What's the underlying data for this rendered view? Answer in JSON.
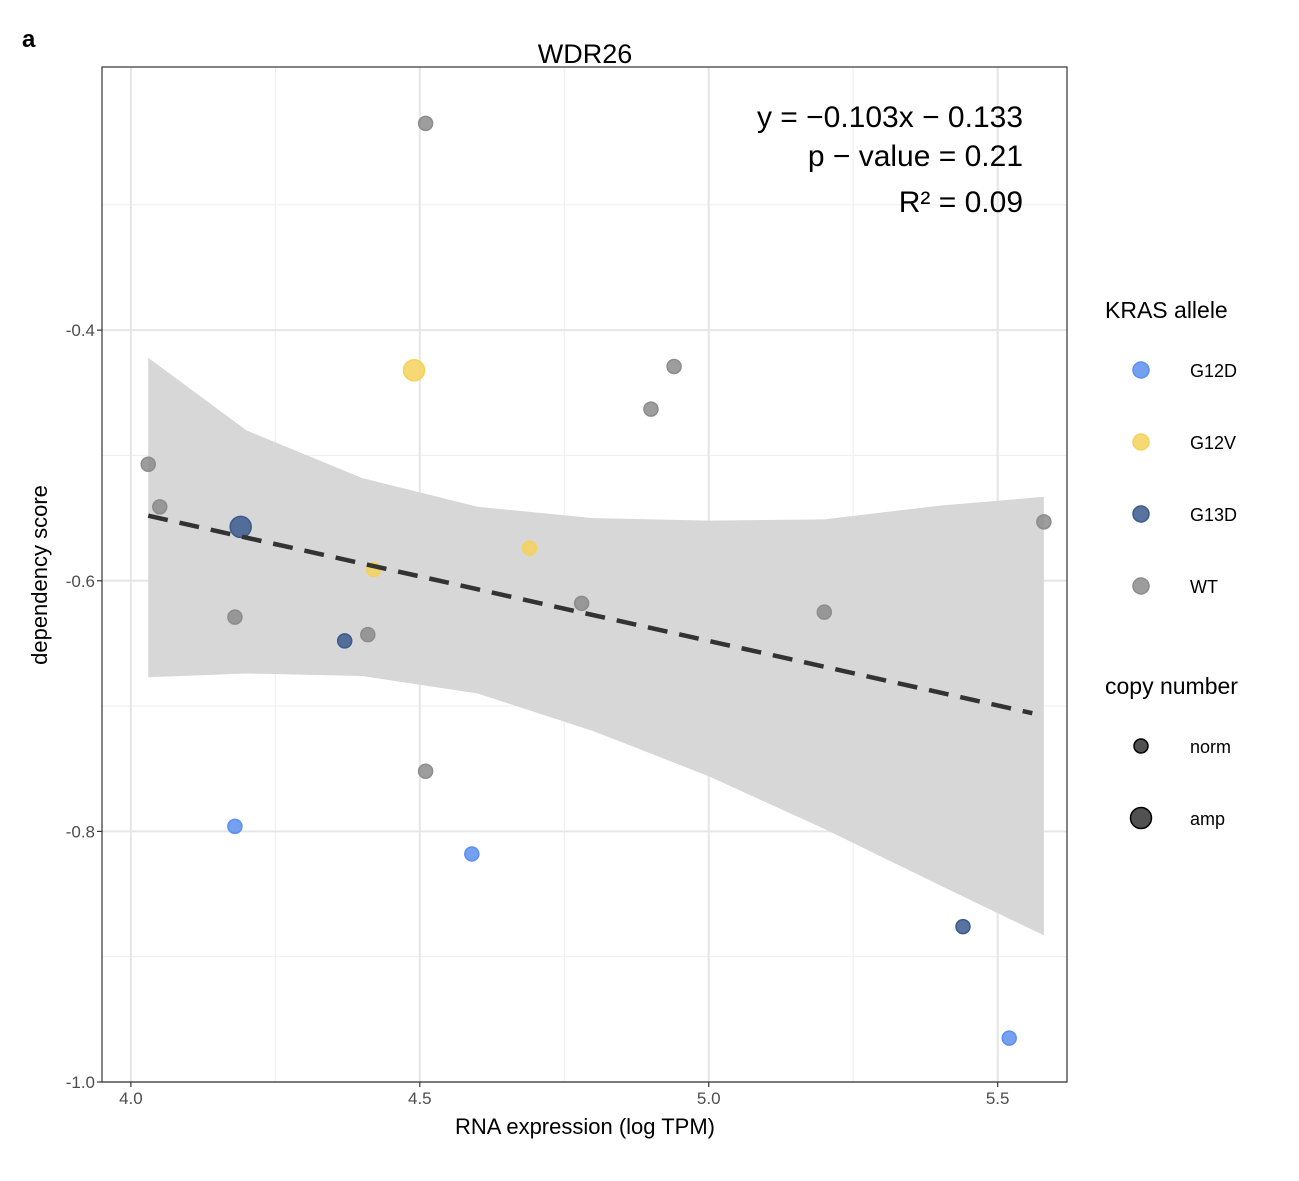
{
  "panel_label": "a",
  "annotation": {
    "equation": "y = −0.103x − 0.133",
    "pvalue": "p − value = 0.21",
    "r2": "R² = 0.09"
  },
  "chart_data": {
    "type": "scatter",
    "title": "WDR26",
    "xlabel": "RNA expression (log TPM)",
    "ylabel": "dependency score",
    "xlim": [
      3.95,
      5.62
    ],
    "ylim": [
      -1.0,
      -0.19
    ],
    "x_ticks": [
      4.0,
      4.5,
      5.0,
      5.5
    ],
    "x_tick_labels": [
      "4.0",
      "4.5",
      "5.0",
      "5.5"
    ],
    "y_ticks": [
      -1.0,
      -0.8,
      -0.6,
      -0.4
    ],
    "y_tick_labels": [
      "-1.0",
      "-0.8",
      "-0.6",
      "-0.4"
    ],
    "grid": true,
    "legend_position": "right",
    "fit": {
      "slope": -0.103,
      "intercept": -0.133,
      "x_range": [
        4.03,
        5.56
      ],
      "style": "dashed"
    },
    "confidence_band": {
      "x": [
        4.03,
        4.2,
        4.4,
        4.6,
        4.8,
        5.0,
        5.2,
        5.4,
        5.58
      ],
      "upper": [
        -0.422,
        -0.48,
        -0.518,
        -0.541,
        -0.55,
        -0.552,
        -0.551,
        -0.54,
        -0.533
      ],
      "lower": [
        -0.677,
        -0.674,
        -0.676,
        -0.69,
        -0.72,
        -0.756,
        -0.798,
        -0.843,
        -0.883
      ]
    },
    "legend": {
      "color_title": "KRAS allele",
      "color_entries": [
        "G12D",
        "G12V",
        "G13D",
        "WT"
      ],
      "size_title": "copy number",
      "size_entries": [
        "norm",
        "amp"
      ]
    },
    "colors": {
      "G12D": "#5c8ff0",
      "G12V": "#f5d15c",
      "G13D": "#3b5a8c",
      "WT": "#8c8c8c",
      "band": "#d6d6d6",
      "fit_line": "#333333"
    },
    "points": [
      {
        "x": 4.51,
        "y": -0.235,
        "allele": "WT",
        "cn": "norm"
      },
      {
        "x": 4.49,
        "y": -0.432,
        "allele": "G12V",
        "cn": "amp"
      },
      {
        "x": 4.94,
        "y": -0.429,
        "allele": "WT",
        "cn": "norm"
      },
      {
        "x": 4.9,
        "y": -0.463,
        "allele": "WT",
        "cn": "norm"
      },
      {
        "x": 4.03,
        "y": -0.507,
        "allele": "WT",
        "cn": "norm"
      },
      {
        "x": 4.05,
        "y": -0.541,
        "allele": "WT",
        "cn": "norm"
      },
      {
        "x": 4.19,
        "y": -0.557,
        "allele": "G13D",
        "cn": "amp"
      },
      {
        "x": 5.58,
        "y": -0.553,
        "allele": "WT",
        "cn": "norm"
      },
      {
        "x": 4.69,
        "y": -0.574,
        "allele": "G12V",
        "cn": "norm"
      },
      {
        "x": 4.42,
        "y": -0.591,
        "allele": "G12V",
        "cn": "norm"
      },
      {
        "x": 4.78,
        "y": -0.618,
        "allele": "WT",
        "cn": "norm"
      },
      {
        "x": 5.2,
        "y": -0.625,
        "allele": "WT",
        "cn": "norm"
      },
      {
        "x": 4.18,
        "y": -0.629,
        "allele": "WT",
        "cn": "norm"
      },
      {
        "x": 4.41,
        "y": -0.643,
        "allele": "WT",
        "cn": "norm"
      },
      {
        "x": 4.37,
        "y": -0.648,
        "allele": "G13D",
        "cn": "norm"
      },
      {
        "x": 4.51,
        "y": -0.752,
        "allele": "WT",
        "cn": "norm"
      },
      {
        "x": 4.18,
        "y": -0.796,
        "allele": "G12D",
        "cn": "norm"
      },
      {
        "x": 4.59,
        "y": -0.818,
        "allele": "G12D",
        "cn": "norm"
      },
      {
        "x": 5.44,
        "y": -0.876,
        "allele": "G13D",
        "cn": "norm"
      },
      {
        "x": 5.52,
        "y": -0.965,
        "allele": "G12D",
        "cn": "norm"
      }
    ]
  }
}
